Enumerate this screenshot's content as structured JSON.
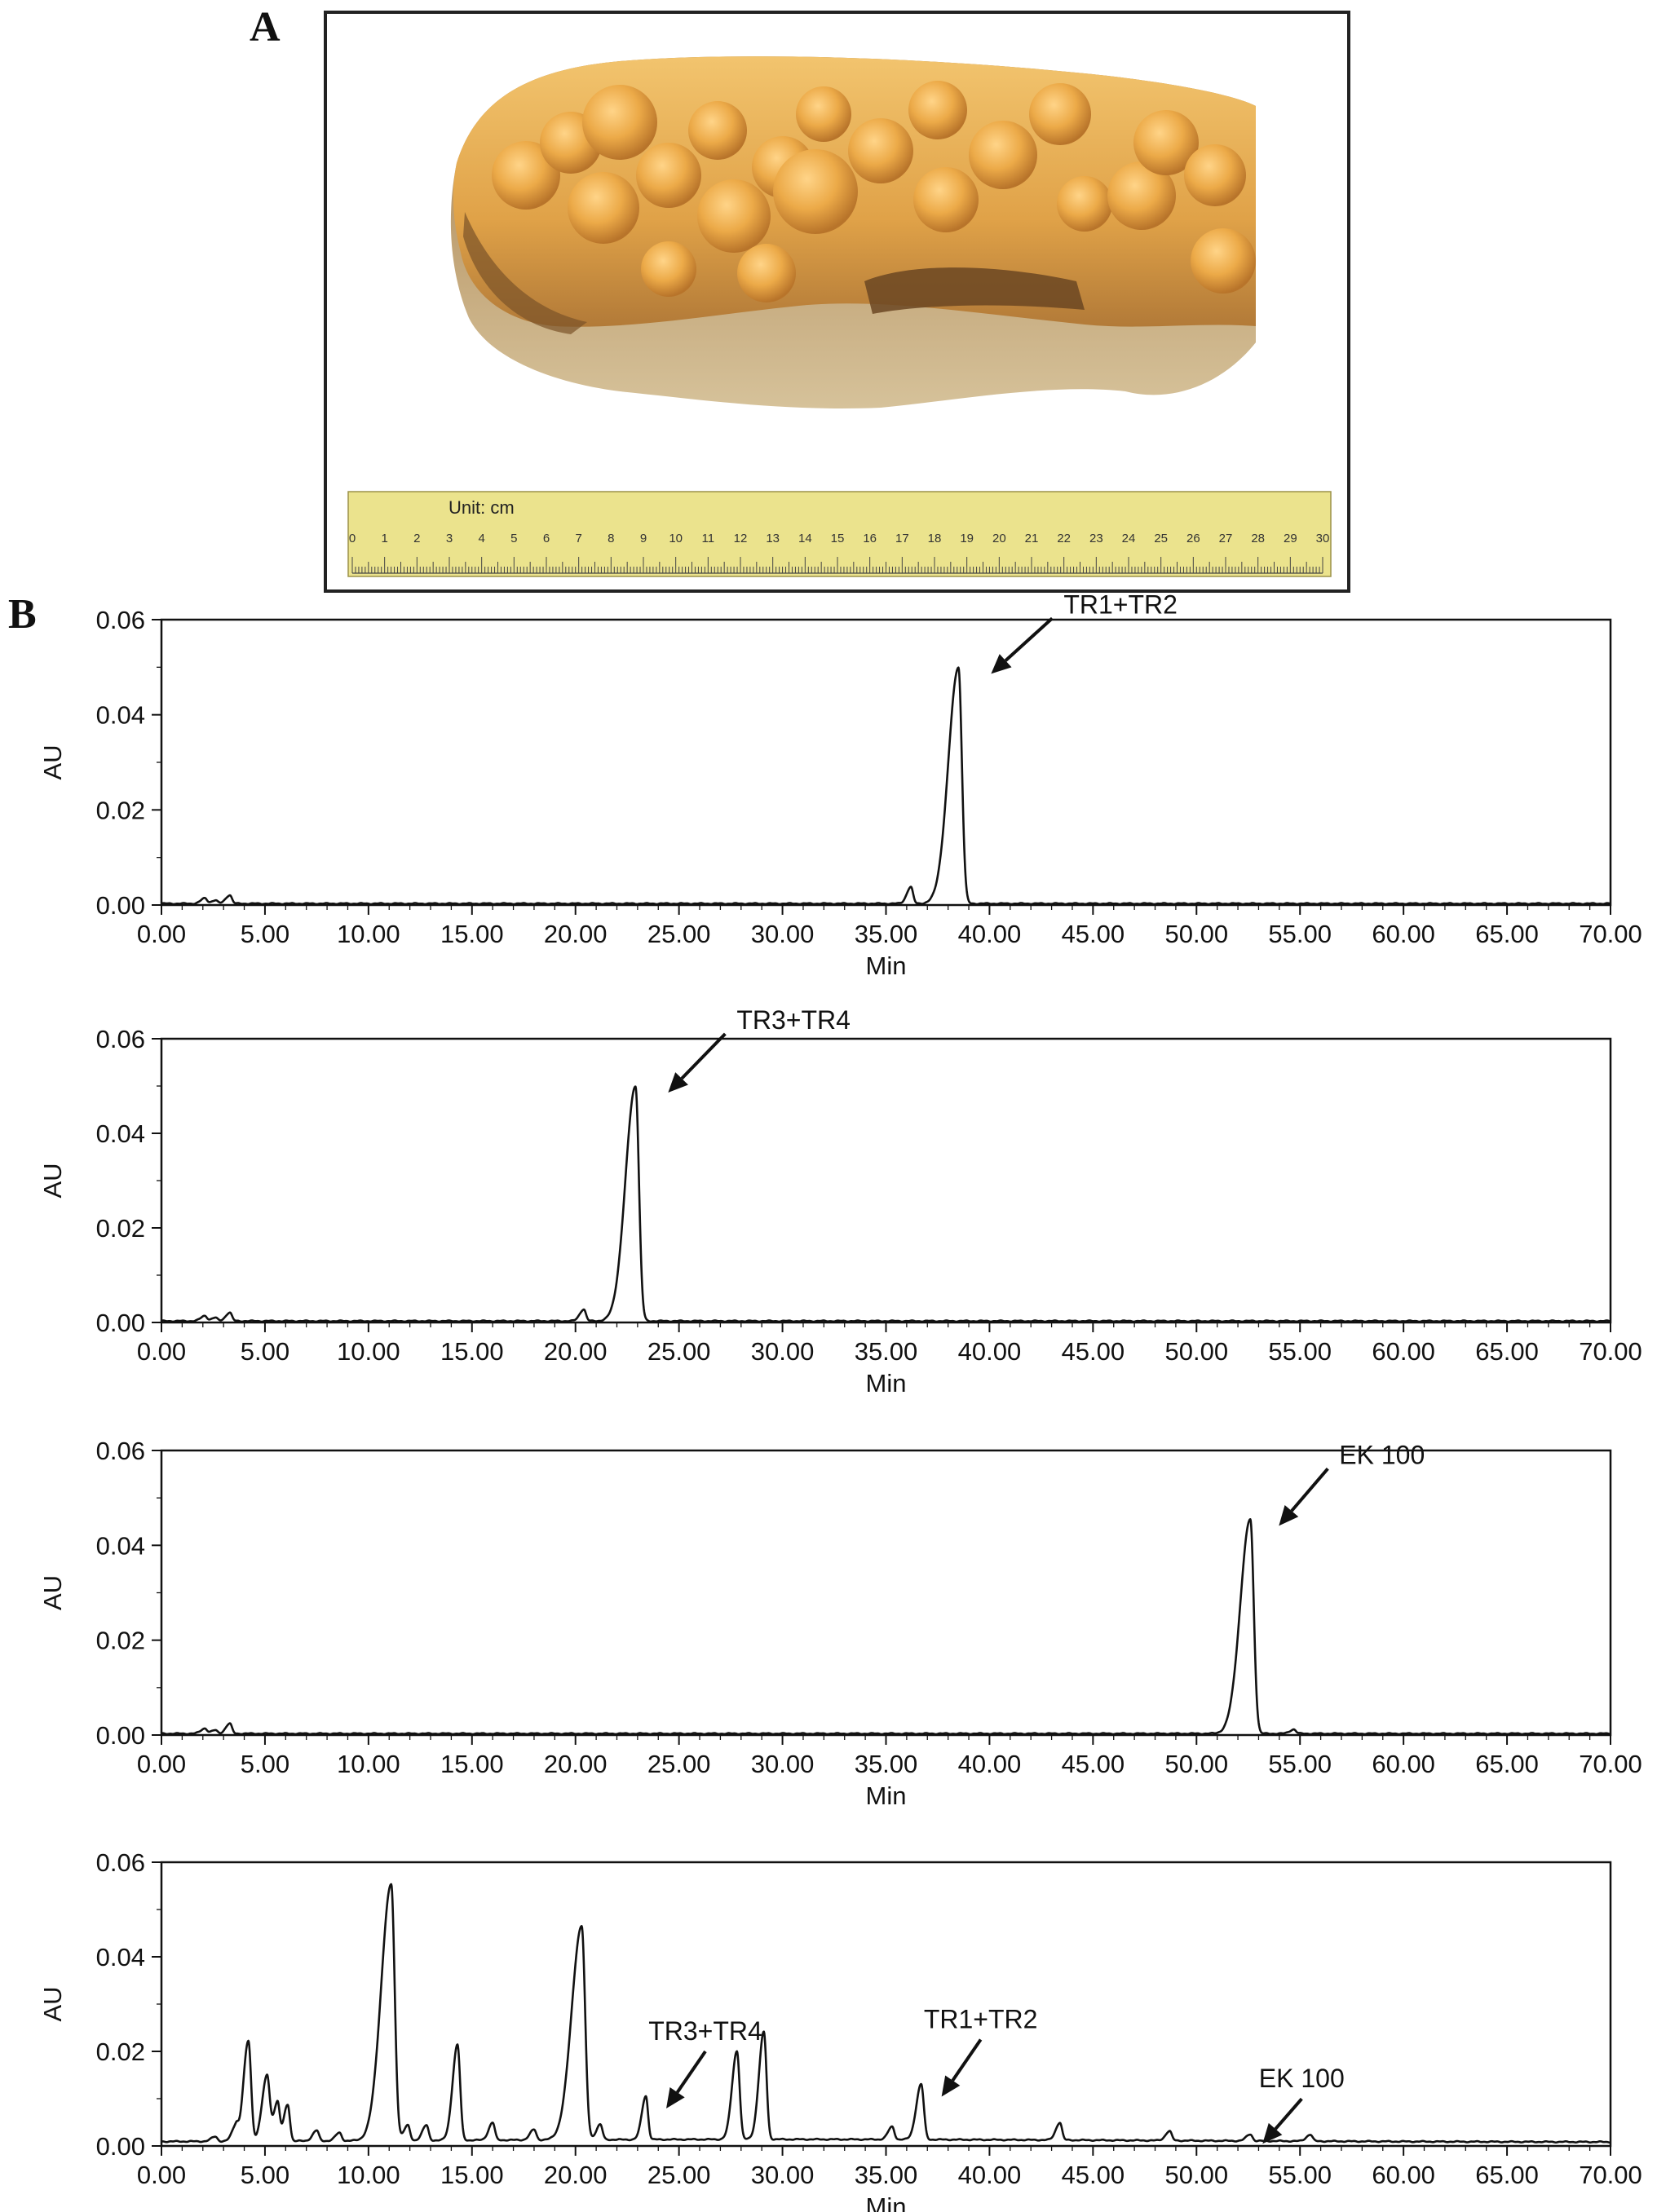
{
  "figure": {
    "panel_a_label": "A",
    "panel_b_label": "B",
    "photo": {
      "ruler_unit": "Unit: cm",
      "ruler_numbers": [
        "0",
        "1",
        "2",
        "3",
        "4",
        "5",
        "6",
        "7",
        "8",
        "9",
        "10",
        "11",
        "12",
        "13",
        "14",
        "15",
        "16",
        "17",
        "18",
        "19",
        "20",
        "21",
        "22",
        "23",
        "24",
        "25",
        "26",
        "27",
        "28",
        "29",
        "30"
      ],
      "ruler_color": "#ebe38d",
      "specimen_color": "#e8a540"
    }
  },
  "chart_data": [
    {
      "type": "line",
      "xlabel": "Min",
      "ylabel": "AU",
      "xlim": [
        0,
        70
      ],
      "ylim": [
        0,
        0.06
      ],
      "xticks": [
        "0.00",
        "5.00",
        "10.00",
        "15.00",
        "20.00",
        "25.00",
        "30.00",
        "35.00",
        "40.00",
        "45.00",
        "50.00",
        "55.00",
        "60.00",
        "65.00",
        "70.00"
      ],
      "yticks": [
        "0.00",
        "0.02",
        "0.04",
        "0.06"
      ],
      "baseline": 0.0003,
      "peaks": [
        {
          "x": 2.1,
          "y": 0.0014
        },
        {
          "x": 2.6,
          "y": 0.001
        },
        {
          "x": 3.3,
          "y": 0.0021
        },
        {
          "x": 36.2,
          "y": 0.0038
        },
        {
          "x": 38.5,
          "y": 0.05
        }
      ],
      "annotations": [
        {
          "text": "TR1+TR2",
          "x": 38.5,
          "y": 0.05
        }
      ]
    },
    {
      "type": "line",
      "xlabel": "Min",
      "ylabel": "AU",
      "xlim": [
        0,
        70
      ],
      "ylim": [
        0,
        0.06
      ],
      "xticks": [
        "0.00",
        "5.00",
        "10.00",
        "15.00",
        "20.00",
        "25.00",
        "30.00",
        "35.00",
        "40.00",
        "45.00",
        "50.00",
        "55.00",
        "60.00",
        "65.00",
        "70.00"
      ],
      "yticks": [
        "0.00",
        "0.02",
        "0.04",
        "0.06"
      ],
      "baseline": 0.0003,
      "peaks": [
        {
          "x": 2.1,
          "y": 0.0014
        },
        {
          "x": 2.6,
          "y": 0.001
        },
        {
          "x": 3.3,
          "y": 0.0021
        },
        {
          "x": 20.4,
          "y": 0.0028
        },
        {
          "x": 22.9,
          "y": 0.05
        }
      ],
      "annotations": [
        {
          "text": "TR3+TR4",
          "x": 22.9,
          "y": 0.05
        }
      ]
    },
    {
      "type": "line",
      "xlabel": "Min",
      "ylabel": "AU",
      "xlim": [
        0,
        70
      ],
      "ylim": [
        0,
        0.06
      ],
      "xticks": [
        "0.00",
        "5.00",
        "10.00",
        "15.00",
        "20.00",
        "25.00",
        "30.00",
        "35.00",
        "40.00",
        "45.00",
        "50.00",
        "55.00",
        "60.00",
        "65.00",
        "70.00"
      ],
      "yticks": [
        "0.00",
        "0.02",
        "0.04",
        "0.06"
      ],
      "baseline": 0.0003,
      "peaks": [
        {
          "x": 2.1,
          "y": 0.0014
        },
        {
          "x": 2.6,
          "y": 0.001
        },
        {
          "x": 3.3,
          "y": 0.0024
        },
        {
          "x": 52.6,
          "y": 0.0455
        },
        {
          "x": 54.7,
          "y": 0.0012
        }
      ],
      "annotations": [
        {
          "text": "EK 100",
          "x": 52.6,
          "y": 0.0455
        }
      ]
    },
    {
      "type": "line",
      "xlabel": "Min",
      "ylabel": "AU",
      "xlim": [
        0,
        70
      ],
      "ylim": [
        0,
        0.06
      ],
      "xticks": [
        "0.00",
        "5.00",
        "10.00",
        "15.00",
        "20.00",
        "25.00",
        "30.00",
        "35.00",
        "40.00",
        "45.00",
        "50.00",
        "55.00",
        "60.00",
        "65.00",
        "70.00"
      ],
      "yticks": [
        "0.00",
        "0.02",
        "0.04",
        "0.06"
      ],
      "baseline": 0.0008,
      "peaks": [
        {
          "x": 2.6,
          "y": 0.0018
        },
        {
          "x": 3.6,
          "y": 0.004
        },
        {
          "x": 4.2,
          "y": 0.022
        },
        {
          "x": 5.1,
          "y": 0.0145
        },
        {
          "x": 5.6,
          "y": 0.009
        },
        {
          "x": 6.1,
          "y": 0.0085
        },
        {
          "x": 7.5,
          "y": 0.003
        },
        {
          "x": 8.6,
          "y": 0.0025
        },
        {
          "x": 11.1,
          "y": 0.055
        },
        {
          "x": 11.9,
          "y": 0.004
        },
        {
          "x": 12.8,
          "y": 0.004
        },
        {
          "x": 14.3,
          "y": 0.021
        },
        {
          "x": 16.0,
          "y": 0.0045
        },
        {
          "x": 18.0,
          "y": 0.003
        },
        {
          "x": 20.3,
          "y": 0.046
        },
        {
          "x": 21.2,
          "y": 0.004
        },
        {
          "x": 23.4,
          "y": 0.01
        },
        {
          "x": 27.8,
          "y": 0.0195
        },
        {
          "x": 29.1,
          "y": 0.0235
        },
        {
          "x": 35.3,
          "y": 0.0035
        },
        {
          "x": 36.7,
          "y": 0.0125
        },
        {
          "x": 43.4,
          "y": 0.0045
        },
        {
          "x": 48.7,
          "y": 0.0028
        },
        {
          "x": 52.6,
          "y": 0.0022
        },
        {
          "x": 55.5,
          "y": 0.0022
        }
      ],
      "annotations": [
        {
          "text": "TR3+TR4",
          "x": 23.4,
          "y": 0.01
        },
        {
          "text": "TR1+TR2",
          "x": 36.7,
          "y": 0.0125
        },
        {
          "text": "EK 100",
          "x": 52.6,
          "y": 0.0022
        }
      ]
    }
  ]
}
